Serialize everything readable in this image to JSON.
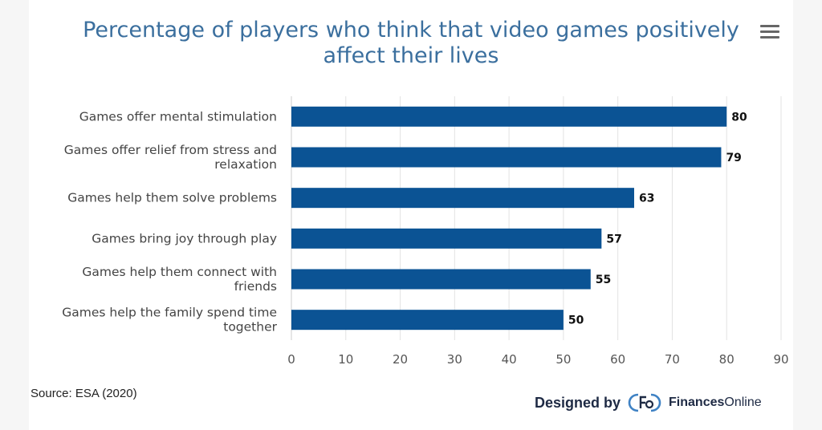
{
  "chart_data": {
    "type": "bar",
    "orientation": "horizontal",
    "title": "Percentage of players who think that video games positively affect their lives",
    "categories": [
      [
        "Games offer mental stimulation"
      ],
      [
        "Games offer relief from stress and",
        "relaxation"
      ],
      [
        "Games help them solve problems"
      ],
      [
        "Games bring joy through play"
      ],
      [
        "Games help them connect with",
        "friends"
      ],
      [
        "Games help the family spend time",
        "together"
      ]
    ],
    "values": [
      80,
      79,
      63,
      57,
      55,
      50
    ],
    "xlim": [
      0,
      90
    ],
    "ticks": [
      0,
      10,
      20,
      30,
      40,
      50,
      60,
      70,
      80,
      90
    ],
    "grid": true,
    "bar_color": "#0b5394",
    "data_labels": true
  },
  "footer": {
    "source": "Source: ESA (2020)",
    "designed_by": "Designed by",
    "brand_bold": "Finances",
    "brand_rest": "Online"
  },
  "icons": {
    "menu": "hamburger-menu-icon",
    "logo": "financesonline-logo-icon"
  }
}
